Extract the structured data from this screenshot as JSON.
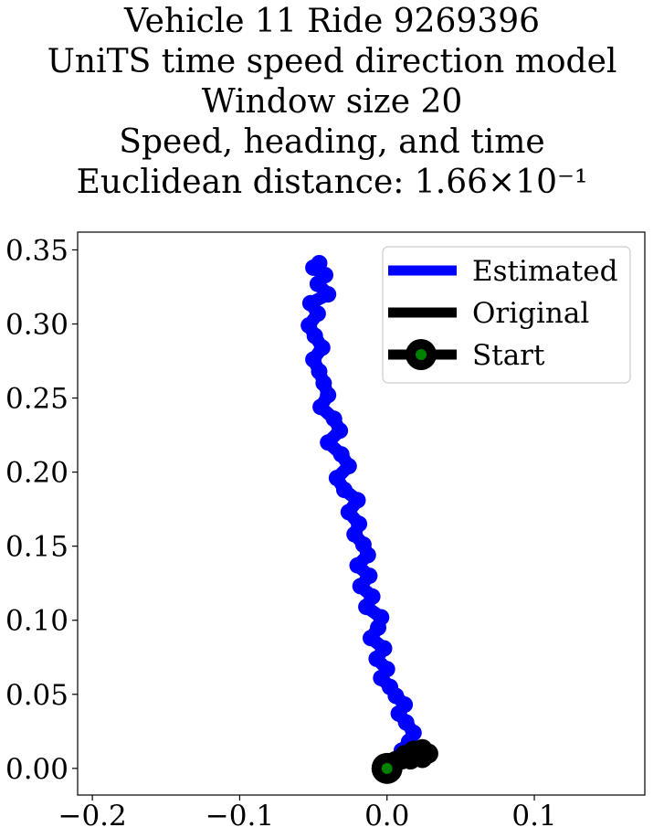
{
  "chart_data": {
    "type": "line",
    "title_lines": [
      "Vehicle 11 Ride 9269396",
      "UniTS time speed direction model",
      "Window size 20",
      "Speed, heading, and time",
      "Euclidean distance: 1.66×10⁻¹"
    ],
    "xlabel": "",
    "ylabel": "",
    "xlim": [
      -0.21,
      0.175
    ],
    "ylim": [
      -0.018,
      0.362
    ],
    "xticks": [
      -0.2,
      -0.1,
      0.0,
      0.1
    ],
    "xtick_labels": [
      "−0.2",
      "−0.1",
      "0.0",
      "0.1"
    ],
    "yticks": [
      0.0,
      0.05,
      0.1,
      0.15,
      0.2,
      0.25,
      0.3,
      0.35
    ],
    "ytick_labels": [
      "0.00",
      "0.05",
      "0.10",
      "0.15",
      "0.20",
      "0.25",
      "0.30",
      "0.35"
    ],
    "grid": false,
    "legend_position": "upper right",
    "series": [
      {
        "name": "Estimated",
        "color": "#0000ff",
        "x": [
          0.0,
          0.004,
          0.01,
          0.015,
          0.018,
          0.013,
          0.008,
          0.012,
          0.006,
          0.002,
          -0.004,
          0.0,
          -0.007,
          -0.002,
          -0.011,
          -0.006,
          -0.004,
          -0.014,
          -0.01,
          -0.018,
          -0.012,
          -0.02,
          -0.013,
          -0.016,
          -0.022,
          -0.019,
          -0.026,
          -0.02,
          -0.029,
          -0.034,
          -0.026,
          -0.031,
          -0.04,
          -0.032,
          -0.036,
          -0.045,
          -0.04,
          -0.043,
          -0.046,
          -0.05,
          -0.044,
          -0.049,
          -0.053,
          -0.047,
          -0.052,
          -0.04,
          -0.047,
          -0.042,
          -0.05,
          -0.046
        ],
        "y": [
          0.0,
          0.004,
          0.012,
          0.018,
          0.024,
          0.031,
          0.037,
          0.043,
          0.049,
          0.055,
          0.061,
          0.067,
          0.074,
          0.081,
          0.088,
          0.095,
          0.102,
          0.109,
          0.116,
          0.123,
          0.13,
          0.137,
          0.144,
          0.151,
          0.158,
          0.165,
          0.173,
          0.181,
          0.188,
          0.196,
          0.204,
          0.212,
          0.22,
          0.228,
          0.236,
          0.244,
          0.252,
          0.26,
          0.268,
          0.276,
          0.284,
          0.292,
          0.299,
          0.307,
          0.314,
          0.32,
          0.327,
          0.333,
          0.338,
          0.341
        ]
      },
      {
        "name": "Original",
        "color": "#000000",
        "x": [
          0.0,
          0.006,
          0.012,
          0.018,
          0.024,
          0.028,
          0.024,
          0.016,
          0.01,
          0.004,
          0.0
        ],
        "y": [
          0.0,
          0.005,
          0.009,
          0.012,
          0.013,
          0.01,
          0.007,
          0.006,
          0.006,
          0.004,
          0.0
        ]
      }
    ],
    "start": {
      "name": "Start",
      "x": 0.0,
      "y": 0.0,
      "marker_color": "#008000",
      "edge_color": "#000000"
    }
  }
}
